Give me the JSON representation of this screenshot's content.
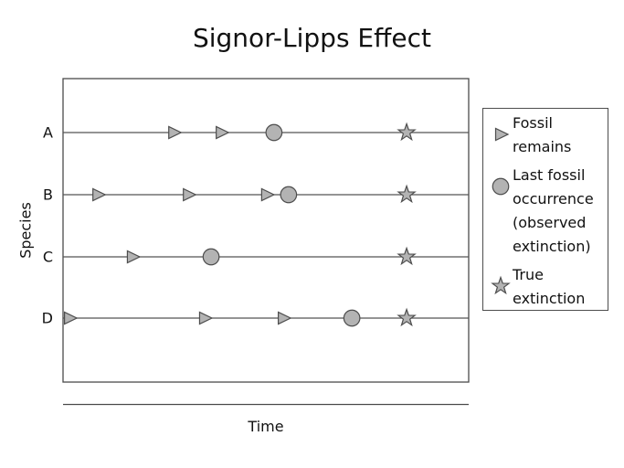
{
  "title": "Signor-Lipps Effect",
  "axes": {
    "x_label": "Time",
    "y_label": "Species"
  },
  "legend": {
    "items": [
      {
        "icon": "triangle-right",
        "label": "Fossil\nremains"
      },
      {
        "icon": "circle",
        "label": "Last fossil\noccurrence\n(observed\nextinction)"
      },
      {
        "icon": "star",
        "label": "True\nextinction"
      }
    ]
  },
  "colors": {
    "marker_fill": "#b3b3b3",
    "marker_stroke": "#4d4d4d",
    "line": "#555555",
    "frame": "#4a4a4a",
    "text": "#111111",
    "background": "#ffffff"
  },
  "chart_data": {
    "type": "scatter",
    "title": "Signor-Lipps Effect",
    "xlabel": "Time",
    "ylabel": "Species",
    "x_axis": {
      "range": [
        0,
        100
      ],
      "ticks_visible": false
    },
    "grid": false,
    "legend_position": "outside-right",
    "categories": [
      "A",
      "B",
      "C",
      "D"
    ],
    "species": [
      {
        "label": "A",
        "fossil_occurrences_x": [
          27.3,
          39.0
        ],
        "last_fossil_x": 52.0,
        "true_extinction_x": 84.7
      },
      {
        "label": "B",
        "fossil_occurrences_x": [
          8.6,
          30.9,
          50.2
        ],
        "last_fossil_x": 55.6,
        "true_extinction_x": 84.7
      },
      {
        "label": "C",
        "fossil_occurrences_x": [
          17.1
        ],
        "last_fossil_x": 36.5,
        "true_extinction_x": 84.7
      },
      {
        "label": "D",
        "fossil_occurrences_x": [
          1.6,
          34.9,
          54.3
        ],
        "last_fossil_x": 71.2,
        "true_extinction_x": 84.7
      }
    ]
  }
}
